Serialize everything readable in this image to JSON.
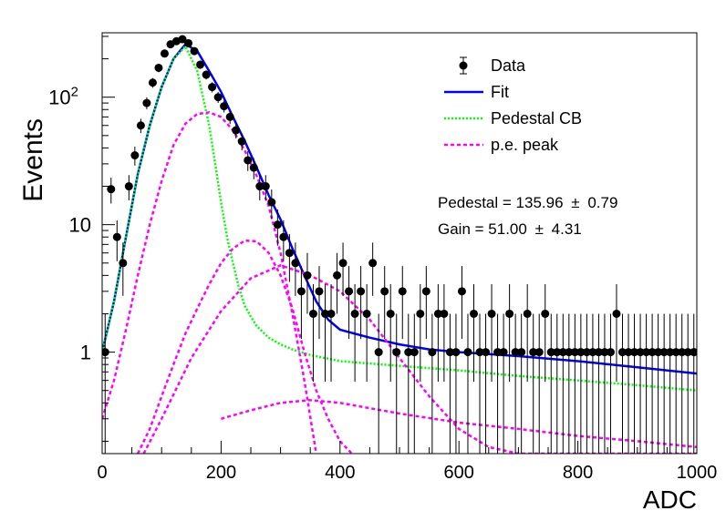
{
  "chart_data": {
    "type": "scatter",
    "xlabel": "ADC",
    "ylabel": "Events",
    "xlim": [
      0,
      1000
    ],
    "ylim": [
      0.16,
      320
    ],
    "y_scale": "log",
    "grid": false,
    "legend_position": "top-right",
    "x_ticks": [
      "0",
      "200",
      "400",
      "600",
      "800",
      "1000"
    ],
    "y_ticks": [
      {
        "value": 1,
        "label": "1"
      },
      {
        "value": 10,
        "label": "10"
      },
      {
        "value": 100,
        "label": "10",
        "sup": "2"
      }
    ],
    "legend": [
      {
        "key": "data",
        "label": "Data"
      },
      {
        "key": "fit",
        "label": "Fit"
      },
      {
        "key": "pedestal",
        "label": "Pedestal CB"
      },
      {
        "key": "pe",
        "label": "p.e. peak"
      }
    ],
    "annotations": {
      "pedestal_text": "Pedestal = 135.96",
      "pedestal_err": "0.79",
      "gain_text": "Gain = 51.00",
      "gain_err": "4.31",
      "pm": "±"
    },
    "colors": {
      "data": "#000000",
      "fit": "#0000ff",
      "pedestal": "#00ff00",
      "pe": "#ff00ff"
    },
    "series": [
      {
        "key": "data",
        "style": "points",
        "x": [
          5,
          15,
          25,
          35,
          45,
          55,
          65,
          75,
          85,
          95,
          105,
          115,
          125,
          135,
          145,
          155,
          165,
          175,
          185,
          195,
          205,
          215,
          225,
          235,
          245,
          255,
          265,
          275,
          285,
          295,
          305,
          315,
          325,
          335,
          345,
          355,
          365,
          375,
          385,
          395,
          405,
          415,
          425,
          435,
          445,
          455,
          465,
          475,
          485,
          495,
          505,
          515,
          525,
          535,
          545,
          555,
          565,
          575,
          585,
          595,
          605,
          615,
          625,
          635,
          645,
          655,
          665,
          675,
          685,
          695,
          705,
          715,
          725,
          735,
          745,
          755,
          765,
          775,
          785,
          795,
          805,
          815,
          825,
          835,
          845,
          855,
          865,
          875,
          885,
          895,
          905,
          915,
          925,
          935,
          945,
          955,
          965,
          975,
          985,
          995
        ],
        "y": [
          1,
          19,
          8,
          5,
          20,
          35,
          60,
          90,
          130,
          170,
          220,
          260,
          275,
          285,
          265,
          230,
          180,
          150,
          120,
          100,
          85,
          70,
          55,
          45,
          32,
          28,
          20,
          20,
          15,
          10,
          8,
          6,
          5,
          3,
          4,
          2,
          3,
          2,
          2,
          4,
          5,
          3,
          2,
          3,
          2,
          5,
          1,
          3,
          2,
          1,
          3,
          1,
          1,
          2,
          3,
          1,
          2,
          2,
          1,
          1,
          3,
          1,
          2,
          1,
          1,
          2,
          1,
          1,
          2,
          1,
          1,
          2,
          1,
          1,
          2,
          1,
          1,
          1,
          1,
          1,
          1,
          1,
          1,
          1,
          1,
          1,
          2,
          1,
          1,
          1,
          1,
          1,
          1,
          1,
          1,
          1,
          1,
          1,
          1,
          1
        ]
      },
      {
        "key": "fit",
        "style": "line",
        "x": [
          0,
          20,
          40,
          60,
          80,
          100,
          120,
          140,
          160,
          180,
          200,
          220,
          240,
          260,
          280,
          300,
          320,
          340,
          360,
          380,
          400,
          450,
          500,
          550,
          600,
          700,
          800,
          900,
          1000
        ],
        "y": [
          1,
          2.5,
          8,
          25,
          60,
          120,
          200,
          260,
          230,
          160,
          110,
          70,
          45,
          28,
          17,
          11,
          6.5,
          4,
          2.5,
          1.8,
          1.5,
          1.3,
          1.15,
          1.05,
          1,
          0.93,
          0.85,
          0.76,
          0.68
        ]
      },
      {
        "key": "pedestal",
        "style": "line",
        "x": [
          0,
          20,
          40,
          60,
          80,
          100,
          120,
          140,
          160,
          180,
          190,
          200,
          210,
          220,
          230,
          240,
          250,
          260,
          280,
          300,
          320,
          350,
          400,
          500,
          600,
          700,
          800,
          900,
          1000
        ],
        "y": [
          1,
          2.5,
          8,
          25,
          60,
          120,
          200,
          250,
          160,
          60,
          30,
          15,
          8,
          5,
          3.2,
          2.3,
          1.9,
          1.6,
          1.3,
          1.15,
          1.05,
          0.95,
          0.85,
          0.78,
          0.72,
          0.65,
          0.6,
          0.55,
          0.5
        ]
      },
      {
        "key": "pe",
        "style": "line",
        "x": [
          0,
          20,
          40,
          60,
          80,
          100,
          120,
          140,
          160,
          180,
          200,
          220,
          240,
          260,
          280,
          300,
          320,
          340,
          360
        ],
        "y": [
          0.3,
          0.6,
          1.5,
          4,
          10,
          22,
          42,
          62,
          74,
          76,
          70,
          55,
          38,
          24,
          14,
          6,
          2,
          0.6,
          0.16
        ]
      },
      {
        "key": "pe",
        "style": "line",
        "x": [
          60,
          80,
          100,
          120,
          140,
          160,
          180,
          200,
          220,
          240,
          260,
          280,
          300,
          320,
          340,
          360,
          380,
          400,
          420
        ],
        "y": [
          0.16,
          0.25,
          0.45,
          0.8,
          1.4,
          2.2,
          3.4,
          5,
          6.5,
          7.5,
          7.4,
          6,
          4,
          2.2,
          1,
          0.5,
          0.3,
          0.2,
          0.16
        ]
      },
      {
        "key": "pe",
        "style": "line",
        "x": [
          70,
          100,
          150,
          200,
          250,
          300,
          350,
          400,
          450,
          500,
          550,
          600,
          650,
          700,
          750,
          800,
          850,
          900,
          950,
          1000
        ],
        "y": [
          0.16,
          0.3,
          0.9,
          2.1,
          3.8,
          4.8,
          4,
          3,
          1.8,
          0.9,
          0.45,
          0.25,
          0.18,
          0.16,
          0.16,
          0.16,
          0.16,
          0.16,
          0.16,
          0.16
        ]
      },
      {
        "key": "pe",
        "style": "line",
        "x": [
          200,
          250,
          300,
          350,
          400,
          500,
          600,
          700,
          800,
          900,
          1000
        ],
        "y": [
          0.3,
          0.35,
          0.4,
          0.42,
          0.4,
          0.33,
          0.28,
          0.25,
          0.22,
          0.2,
          0.18
        ]
      }
    ]
  }
}
